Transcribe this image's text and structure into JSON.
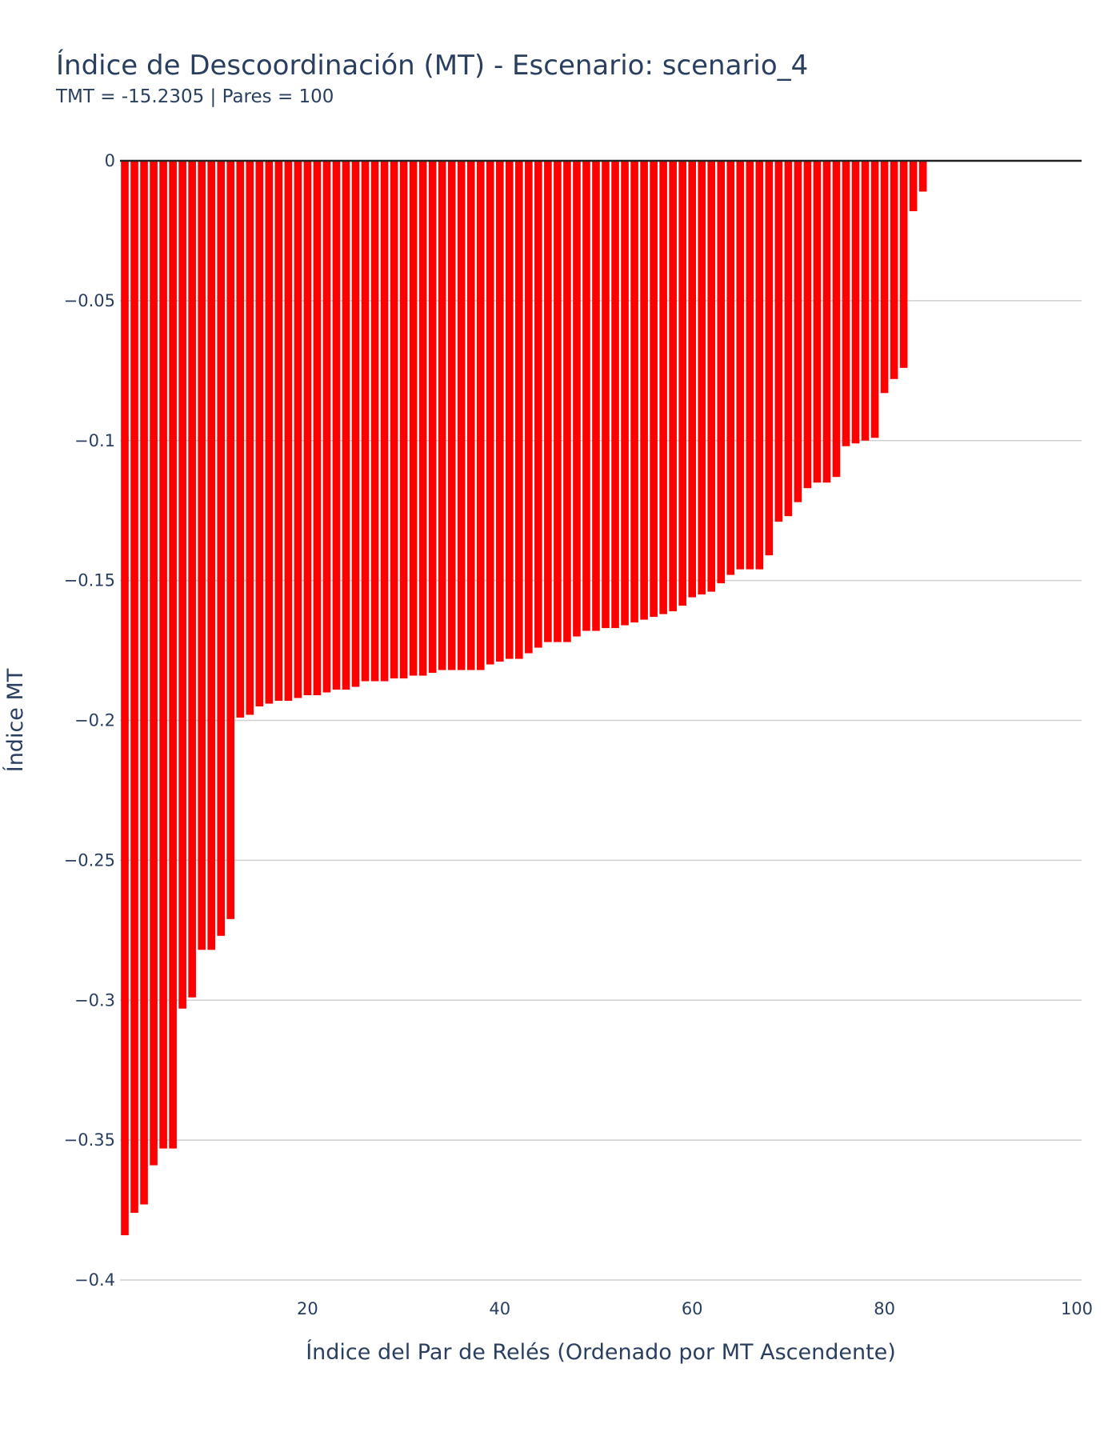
{
  "chart_data": {
    "type": "bar",
    "title": "Índice de Descoordinación (MT) - Escenario: scenario_4",
    "subtitle": "TMT = -15.2305 | Pares = 100",
    "xlabel": "Índice del Par de Relés (Ordenado por MT Ascendente)",
    "ylabel": "Índice MT",
    "xlim": [
      0.5,
      100.5
    ],
    "ylim": [
      -0.4,
      0
    ],
    "x_ticks": [
      20,
      40,
      60,
      80,
      100
    ],
    "y_ticks": [
      0,
      -0.05,
      -0.1,
      -0.15,
      -0.2,
      -0.25,
      -0.3,
      -0.35,
      -0.4
    ],
    "y_tick_labels": [
      "0",
      "−0.05",
      "−0.1",
      "−0.15",
      "−0.2",
      "−0.25",
      "−0.3",
      "−0.35",
      "−0.4"
    ],
    "grid": true,
    "bar_color": "#ff0000",
    "x": [
      1,
      2,
      3,
      4,
      5,
      6,
      7,
      8,
      9,
      10,
      11,
      12,
      13,
      14,
      15,
      16,
      17,
      18,
      19,
      20,
      21,
      22,
      23,
      24,
      25,
      26,
      27,
      28,
      29,
      30,
      31,
      32,
      33,
      34,
      35,
      36,
      37,
      38,
      39,
      40,
      41,
      42,
      43,
      44,
      45,
      46,
      47,
      48,
      49,
      50,
      51,
      52,
      53,
      54,
      55,
      56,
      57,
      58,
      59,
      60,
      61,
      62,
      63,
      64,
      65,
      66,
      67,
      68,
      69,
      70,
      71,
      72,
      73,
      74,
      75,
      76,
      77,
      78,
      79,
      80,
      81,
      82,
      83,
      84,
      85,
      86,
      87,
      88,
      89,
      90,
      91,
      92,
      93,
      94,
      95,
      96,
      97,
      98,
      99,
      100
    ],
    "values": [
      -0.384,
      -0.376,
      -0.373,
      -0.359,
      -0.353,
      -0.353,
      -0.303,
      -0.299,
      -0.282,
      -0.282,
      -0.277,
      -0.271,
      -0.199,
      -0.198,
      -0.195,
      -0.194,
      -0.193,
      -0.193,
      -0.192,
      -0.191,
      -0.191,
      -0.19,
      -0.189,
      -0.189,
      -0.188,
      -0.186,
      -0.186,
      -0.186,
      -0.185,
      -0.185,
      -0.184,
      -0.184,
      -0.183,
      -0.182,
      -0.182,
      -0.182,
      -0.182,
      -0.182,
      -0.18,
      -0.179,
      -0.178,
      -0.178,
      -0.176,
      -0.174,
      -0.172,
      -0.172,
      -0.172,
      -0.17,
      -0.168,
      -0.168,
      -0.167,
      -0.167,
      -0.166,
      -0.165,
      -0.164,
      -0.163,
      -0.162,
      -0.161,
      -0.159,
      -0.156,
      -0.155,
      -0.154,
      -0.151,
      -0.148,
      -0.146,
      -0.146,
      -0.146,
      -0.141,
      -0.129,
      -0.127,
      -0.122,
      -0.117,
      -0.115,
      -0.115,
      -0.113,
      -0.102,
      -0.101,
      -0.1,
      -0.099,
      -0.083,
      -0.078,
      -0.074,
      -0.018,
      -0.011,
      0,
      0,
      0,
      0,
      0,
      0,
      0,
      0,
      0,
      0,
      0,
      0,
      0,
      0,
      0,
      0
    ]
  }
}
